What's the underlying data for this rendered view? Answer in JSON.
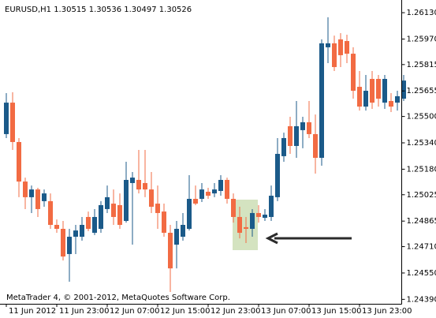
{
  "chart_data": {
    "type": "candlestick",
    "title": "EURUSD,H1  1.30515 1.30536 1.30497 1.30526",
    "footer": "MetaTrader 4, © 2001-2012, MetaQuotes Software Corp.",
    "up_color": "#1b5a89",
    "down_color": "#f26b43",
    "grid": false,
    "categories": [
      "11 Jun 2012",
      null,
      null,
      null,
      null,
      null,
      null,
      null,
      "11 Jun 23:00",
      null,
      null,
      null,
      null,
      null,
      null,
      null,
      "12 Jun 07:00",
      null,
      null,
      null,
      null,
      null,
      null,
      null,
      "12 Jun 15:00",
      null,
      null,
      null,
      null,
      null,
      null,
      null,
      "12 Jun 23:00",
      null,
      null,
      null,
      null,
      null,
      null,
      null,
      "13 Jun 07:00",
      null,
      null,
      null,
      null,
      null,
      null,
      null,
      "13 Jun 15:00",
      null,
      null,
      null,
      null,
      null,
      null,
      null,
      "13 Jun 23:00",
      null,
      null,
      null,
      null,
      null,
      null,
      null
    ],
    "open": [
      1.25393,
      1.25584,
      1.25345,
      1.25105,
      1.2501,
      1.25057,
      1.24986,
      1.24986,
      1.24842,
      1.24818,
      1.24665,
      1.2477,
      1.2477,
      1.2489,
      1.24794,
      1.24818,
      1.24938,
      1.24971,
      1.24962,
      1.24866,
      1.25096,
      1.25115,
      1.25096,
      1.25057,
      1.24971,
      1.24923,
      1.24794,
      1.24722,
      1.2477,
      1.24818,
      1.25,
      1.25,
      1.25043,
      1.25033,
      1.25048,
      1.25115,
      1.25,
      1.2489,
      1.24828,
      1.24818,
      1.24914,
      1.24885,
      1.2489,
      1.2501,
      1.25259,
      1.25441,
      1.25321,
      1.25417,
      1.25465,
      1.25393,
      1.25249,
      1.2592,
      1.25944,
      1.25968,
      1.25958,
      1.25881,
      1.2568,
      1.2556,
      1.25728,
      1.25728,
      1.25584,
      1.25594,
      1.25584,
      1.25608
    ],
    "high": [
      1.25642,
      1.25647,
      1.25369,
      1.25129,
      1.25081,
      1.25067,
      1.25057,
      1.25033,
      1.24875,
      1.24866,
      1.24818,
      1.24842,
      1.2489,
      1.24923,
      1.24938,
      1.24986,
      1.25081,
      1.25057,
      1.25033,
      1.25225,
      1.25163,
      1.25297,
      1.25297,
      1.25163,
      1.25081,
      1.24971,
      1.24842,
      1.24866,
      1.24914,
      1.25144,
      1.25081,
      1.25096,
      1.25067,
      1.25096,
      1.25144,
      1.25129,
      1.25033,
      1.24952,
      1.2489,
      1.24938,
      1.24962,
      1.24938,
      1.25081,
      1.25369,
      1.25402,
      1.25498,
      1.25594,
      1.25498,
      1.25594,
      1.25512,
      1.25968,
      1.26102,
      1.25991,
      1.26006,
      1.25996,
      1.2592,
      1.25776,
      1.25752,
      1.25776,
      1.25752,
      1.25752,
      1.25642,
      1.25656,
      1.25752
    ],
    "low": [
      1.25369,
      1.25297,
      1.2501,
      1.24938,
      1.24914,
      1.2489,
      1.24952,
      1.24818,
      1.24794,
      1.24626,
      1.24497,
      1.24665,
      1.24746,
      1.24804,
      1.2478,
      1.24794,
      1.24914,
      1.24842,
      1.24818,
      1.24856,
      1.24722,
      1.25033,
      1.2501,
      1.24914,
      1.24818,
      1.2477,
      1.24435,
      1.24578,
      1.24746,
      1.24808,
      1.24962,
      1.24981,
      1.25,
      1.2501,
      1.25019,
      1.24971,
      1.24856,
      1.2476,
      1.24732,
      1.2477,
      1.24856,
      1.24866,
      1.24866,
      1.24986,
      1.25225,
      1.25273,
      1.25249,
      1.25307,
      1.25369,
      1.25153,
      1.25201,
      1.25824,
      1.25776,
      1.258,
      1.25824,
      1.25608,
      1.25536,
      1.25536,
      1.25546,
      1.2556,
      1.25546,
      1.25527,
      1.25536,
      1.25594
    ],
    "close": [
      1.25584,
      1.25345,
      1.25105,
      1.2501,
      1.25057,
      1.24938,
      1.25033,
      1.24842,
      1.24818,
      1.2465,
      1.2477,
      1.24808,
      1.24842,
      1.24818,
      1.2489,
      1.24962,
      1.2501,
      1.2489,
      1.24842,
      1.25115,
      1.25129,
      1.25057,
      1.25057,
      1.24952,
      1.24914,
      1.24794,
      1.24578,
      1.24818,
      1.24842,
      1.25,
      1.24971,
      1.25057,
      1.25019,
      1.25057,
      1.25115,
      1.25,
      1.2489,
      1.24794,
      1.24818,
      1.24914,
      1.2489,
      1.24904,
      1.25019,
      1.25273,
      1.25369,
      1.25321,
      1.25441,
      1.25465,
      1.25393,
      1.25249,
      1.25944,
      1.25944,
      1.258,
      1.25872,
      1.25881,
      1.25656,
      1.2556,
      1.25656,
      1.25584,
      1.25608,
      1.25728,
      1.2556,
      1.25623,
      1.25718
    ],
    "ylim": [
      1.24363,
      1.26207
    ],
    "yticks": [
      {
        "value": 1.2439,
        "label": "1.24390"
      },
      {
        "value": 1.2455,
        "label": "1.24550"
      },
      {
        "value": 1.2471,
        "label": "1.24710"
      },
      {
        "value": 1.24865,
        "label": "1.24865"
      },
      {
        "value": 1.25025,
        "label": "1.25025"
      },
      {
        "value": 1.2518,
        "label": "1.25180"
      },
      {
        "value": 1.2534,
        "label": "1.25340"
      },
      {
        "value": 1.255,
        "label": "1.25500"
      },
      {
        "value": 1.25655,
        "label": "1.25655"
      },
      {
        "value": 1.25815,
        "label": "1.25815"
      },
      {
        "value": 1.2597,
        "label": "1.25970"
      },
      {
        "value": 1.2613,
        "label": "1.26130"
      }
    ]
  }
}
